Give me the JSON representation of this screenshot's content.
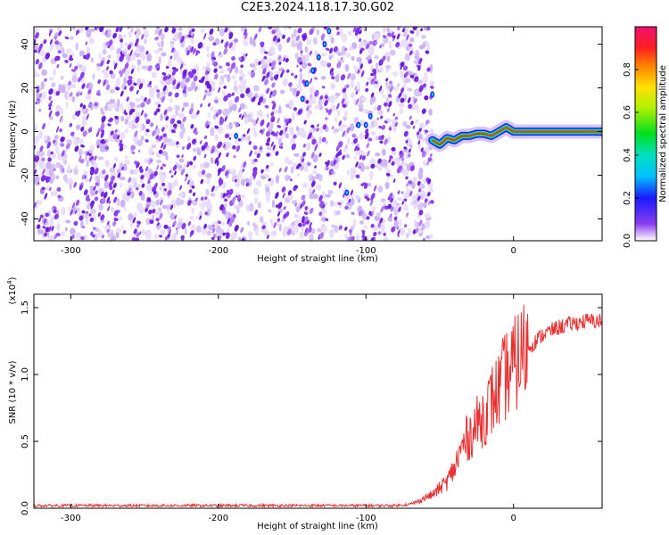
{
  "title": "C2E3.2024.118.17.30.G02",
  "colors": {
    "snr_line": "#e83030",
    "dot": "#7a2ee6",
    "axis": "#000000"
  },
  "chart_data": [
    {
      "type": "heatmap",
      "title": "C2E3.2024.118.17.30.G02",
      "xlabel": "Height of straight line (km)",
      "ylabel": "Frequency (Hz)",
      "xlim": [
        -325,
        60
      ],
      "ylim": [
        -50,
        48
      ],
      "x_ticks": [
        -300,
        -200,
        -100,
        0
      ],
      "x_tick_labels": [
        "-300",
        "-200",
        "-100",
        "0"
      ],
      "y_ticks": [
        -40,
        -20,
        0,
        20,
        40
      ],
      "y_tick_labels": [
        "-40",
        "-20",
        "0",
        "20",
        "40"
      ],
      "noise_region_x": [
        -325,
        -55
      ],
      "signal_curve": {
        "x": [
          -55,
          -50,
          -45,
          -40,
          -35,
          -30,
          -25,
          -20,
          -15,
          -10,
          -5,
          0,
          10,
          20,
          40,
          60
        ],
        "y": [
          -4,
          -6,
          -3,
          -4,
          -2,
          -2,
          -1,
          -1,
          -2,
          0,
          2,
          0,
          0,
          0,
          0,
          0
        ],
        "amplitude": [
          0.55,
          0.6,
          0.6,
          0.65,
          0.7,
          0.72,
          0.75,
          0.78,
          0.8,
          0.82,
          0.85,
          0.85,
          0.88,
          0.9,
          0.92,
          0.92
        ]
      },
      "colorbar": {
        "label": "Normalized spectral amplitude",
        "ticks": [
          0.0,
          0.2,
          0.4,
          0.6,
          0.8
        ],
        "tick_labels": [
          "0.0",
          "0.2",
          "0.4",
          "0.6",
          "0.8"
        ],
        "range": [
          0,
          1
        ]
      }
    },
    {
      "type": "line",
      "xlabel": "Height of straight line (km)",
      "ylabel": "SNR (10 * v/v)",
      "y_multiplier_label": "(x10",
      "y_multiplier_exp": "4",
      "y_multiplier_close": ")",
      "xlim": [
        -325,
        60
      ],
      "ylim": [
        0,
        1.6
      ],
      "x_ticks": [
        -300,
        -200,
        -100,
        0
      ],
      "x_tick_labels": [
        "-300",
        "-200",
        "-100",
        "0"
      ],
      "y_ticks": [
        0.0,
        0.5,
        1.0,
        1.5
      ],
      "y_tick_labels": [
        "0.0",
        "0.5",
        "1.0",
        "1.5"
      ],
      "series": [
        {
          "name": "SNR",
          "x": [
            -325,
            -250,
            -150,
            -80,
            -70,
            -65,
            -60,
            -55,
            -50,
            -45,
            -40,
            -35,
            -30,
            -25,
            -20,
            -15,
            -10,
            -5,
            0,
            5,
            10,
            20,
            30,
            40,
            50,
            60
          ],
          "values": [
            0.02,
            0.02,
            0.02,
            0.02,
            0.03,
            0.05,
            0.08,
            0.1,
            0.15,
            0.2,
            0.3,
            0.45,
            0.55,
            0.62,
            0.7,
            0.8,
            0.88,
            1.0,
            1.05,
            1.15,
            1.2,
            1.3,
            1.35,
            1.38,
            1.4,
            1.4
          ]
        }
      ]
    }
  ]
}
